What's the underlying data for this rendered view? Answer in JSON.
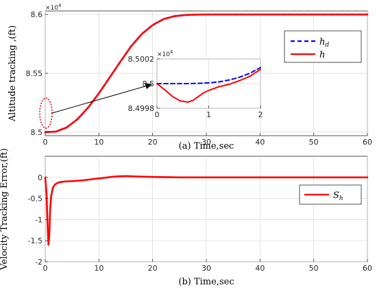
{
  "chart_data": [
    {
      "id": "top",
      "type": "line",
      "xlabel": "(a)  Time,sec",
      "ylabel": "Altitude tracking ,(ft)",
      "xlim": [
        0,
        60
      ],
      "ylim": [
        84970,
        86030
      ],
      "xticks": [
        0,
        10,
        20,
        30,
        40,
        50,
        60
      ],
      "yticks": [
        85000,
        85500,
        86000
      ],
      "ytick_labels": [
        "8.5",
        "8.55",
        "8.6"
      ],
      "y_multiplier": "×10",
      "y_multiplier_exp": "4",
      "grid": true,
      "legend_position": "top-right",
      "series": [
        {
          "name": "h_d",
          "color": "#0000ff",
          "dash": "dashed",
          "x": [
            0,
            2,
            4,
            6,
            8,
            10,
            12,
            14,
            16,
            18,
            20,
            22,
            24,
            26,
            28,
            30,
            35,
            40,
            45,
            50,
            55,
            60
          ],
          "y": [
            85000,
            85005,
            85040,
            85110,
            85210,
            85330,
            85465,
            85600,
            85730,
            85835,
            85910,
            85960,
            85985,
            85995,
            85999,
            86000,
            86000,
            86000,
            86000,
            86000,
            86000,
            86000
          ]
        },
        {
          "name": "h",
          "color": "#ff0000",
          "dash": "solid",
          "x": [
            0,
            2,
            4,
            6,
            8,
            10,
            12,
            14,
            16,
            18,
            20,
            22,
            24,
            26,
            28,
            30,
            35,
            40,
            45,
            50,
            55,
            60
          ],
          "y": [
            85000,
            85005,
            85040,
            85110,
            85210,
            85330,
            85465,
            85600,
            85730,
            85835,
            85910,
            85960,
            85985,
            85995,
            85999,
            86000,
            86000,
            86000,
            86000,
            86000,
            86000,
            86000
          ]
        }
      ],
      "annotation_color": "#cc0000"
    },
    {
      "id": "inset",
      "type": "line",
      "xlim": [
        0,
        2
      ],
      "ylim": [
        84998,
        85002
      ],
      "xticks": [
        0,
        1,
        2
      ],
      "yticks": [
        84998,
        85000,
        85002
      ],
      "ytick_labels": [
        "8.4998",
        "8.5",
        "8.5002"
      ],
      "y_multiplier": "×10",
      "y_multiplier_exp": "4",
      "grid": true,
      "series": [
        {
          "name": "h_d",
          "color": "#0000ff",
          "dash": "dashed",
          "x": [
            0,
            0.2,
            0.4,
            0.6,
            0.8,
            1.0,
            1.2,
            1.4,
            1.6,
            1.8,
            2.0
          ],
          "y": [
            85000,
            85000,
            85000,
            85000,
            85000.02,
            85000.06,
            85000.14,
            85000.3,
            85000.52,
            85000.85,
            85001.3
          ]
        },
        {
          "name": "h",
          "color": "#ff0000",
          "dash": "solid",
          "x": [
            0,
            0.15,
            0.3,
            0.45,
            0.6,
            0.7,
            0.8,
            0.9,
            1.0,
            1.2,
            1.4,
            1.6,
            1.8,
            2.0
          ],
          "y": [
            85000,
            84999.5,
            84998.95,
            84998.6,
            84998.5,
            84998.65,
            84998.95,
            84999.25,
            84999.45,
            84999.75,
            84999.95,
            85000.25,
            85000.6,
            85001.15
          ]
        }
      ]
    },
    {
      "id": "bottom",
      "type": "line",
      "xlabel": "(b)  Time,sec",
      "ylabel": "Velocity Tracking Error,(ft)",
      "xlim": [
        0,
        60
      ],
      "ylim": [
        -2,
        0.5
      ],
      "xticks": [
        0,
        10,
        20,
        30,
        40,
        50,
        60
      ],
      "yticks": [
        -2,
        -1.5,
        -1,
        -0.5,
        0
      ],
      "ytick_labels": [
        "-2",
        "-1.5",
        "-1",
        "-0.5",
        "0"
      ],
      "grid": true,
      "legend_position": "top-right",
      "series": [
        {
          "name": "S_h",
          "color": "#ff0000",
          "dash": "solid",
          "x": [
            0,
            0.25,
            0.45,
            0.6,
            0.75,
            0.9,
            1.1,
            1.4,
            1.8,
            2.5,
            3.5,
            5,
            7,
            9,
            11,
            13,
            15,
            17,
            20,
            25,
            30,
            40,
            50,
            60
          ],
          "y": [
            0,
            -0.4,
            -1.2,
            -1.6,
            -1.4,
            -0.8,
            -0.45,
            -0.25,
            -0.17,
            -0.12,
            -0.1,
            -0.09,
            -0.07,
            -0.04,
            -0.01,
            0.02,
            0.03,
            0.02,
            0.01,
            0,
            0,
            0,
            0,
            0
          ]
        }
      ]
    }
  ],
  "legend_labels": {
    "top_hd_main": "h",
    "top_hd_sub": "d",
    "top_h": "h",
    "bottom_sh_main": "S",
    "bottom_sh_sub": "h"
  }
}
